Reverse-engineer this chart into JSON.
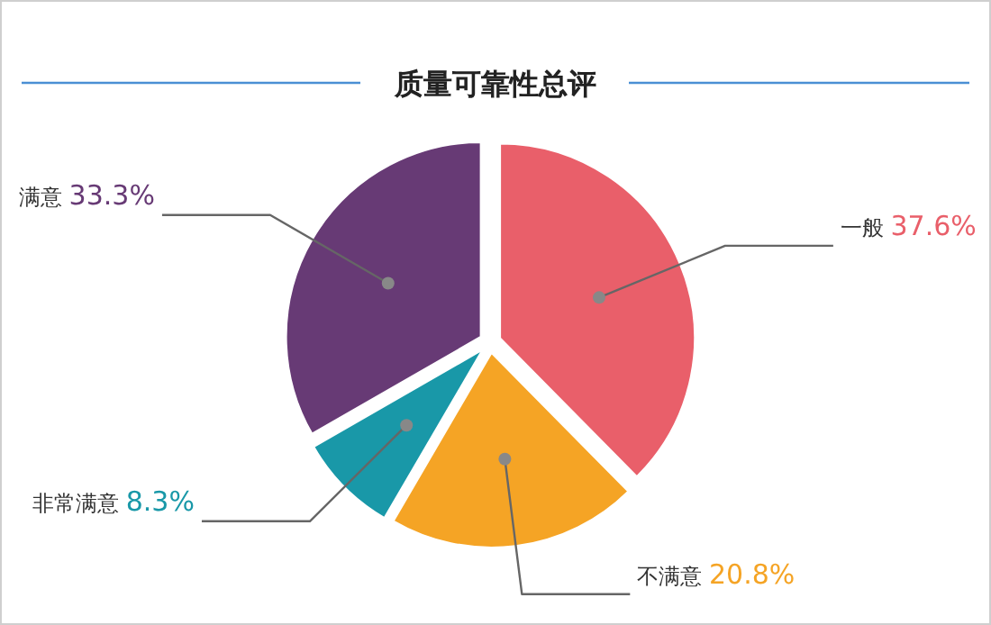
{
  "chart_data": {
    "type": "pie",
    "title": "质量可靠性总评",
    "categories": [
      "一般",
      "不满意",
      "非常满意",
      "满意"
    ],
    "values": [
      37.6,
      20.8,
      8.3,
      33.3
    ],
    "colors": [
      "#e95f6a",
      "#f5a425",
      "#1998a8",
      "#673a75"
    ],
    "value_labels": [
      "37.6%",
      "20.8%",
      "8.3%",
      "33.3%"
    ]
  }
}
